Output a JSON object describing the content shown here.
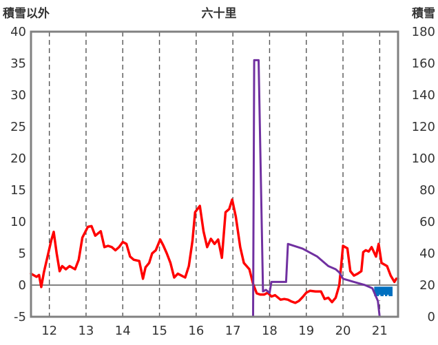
{
  "chart_data": {
    "type": "line",
    "title": "六十里",
    "left_axis_label": "積雪以外",
    "right_axis_label": "積雪",
    "y_left_range": [
      -5,
      40
    ],
    "y_left_ticks": [
      -5,
      0,
      5,
      10,
      15,
      20,
      25,
      30,
      35,
      40
    ],
    "y_right_range": [
      0,
      180
    ],
    "y_right_ticks": [
      0,
      20,
      40,
      60,
      80,
      100,
      120,
      140,
      160,
      180
    ],
    "x_range": [
      11.5,
      21.5
    ],
    "x_ticks": [
      12,
      13,
      14,
      15,
      16,
      17,
      18,
      19,
      20,
      21
    ],
    "grid": "vertical dashed at each day",
    "colors": {
      "temperature": "#ff0000",
      "snow_depth": "#7030a0",
      "precip_bar": "#0070c0",
      "frame": "#808080",
      "zero_line": "#808080"
    },
    "series": [
      {
        "role": "temperature",
        "axis": "left",
        "points": [
          [
            11.5,
            1.8
          ],
          [
            11.65,
            1.3
          ],
          [
            11.72,
            1.6
          ],
          [
            11.78,
            -0.3
          ],
          [
            11.85,
            2.0
          ],
          [
            11.95,
            4.5
          ],
          [
            12.05,
            7.0
          ],
          [
            12.12,
            8.4
          ],
          [
            12.2,
            5.0
          ],
          [
            12.28,
            2.2
          ],
          [
            12.35,
            3.0
          ],
          [
            12.45,
            2.5
          ],
          [
            12.55,
            3.0
          ],
          [
            12.7,
            2.5
          ],
          [
            12.8,
            4.0
          ],
          [
            12.9,
            7.5
          ],
          [
            13.05,
            9.2
          ],
          [
            13.15,
            9.3
          ],
          [
            13.25,
            7.8
          ],
          [
            13.4,
            8.5
          ],
          [
            13.5,
            6.0
          ],
          [
            13.6,
            6.2
          ],
          [
            13.7,
            6.0
          ],
          [
            13.8,
            5.5
          ],
          [
            13.9,
            6.0
          ],
          [
            14.0,
            6.8
          ],
          [
            14.1,
            6.5
          ],
          [
            14.2,
            4.5
          ],
          [
            14.3,
            4.0
          ],
          [
            14.45,
            3.8
          ],
          [
            14.55,
            1.0
          ],
          [
            14.62,
            2.8
          ],
          [
            14.72,
            3.5
          ],
          [
            14.8,
            5.0
          ],
          [
            14.9,
            5.5
          ],
          [
            15.02,
            7.2
          ],
          [
            15.1,
            6.3
          ],
          [
            15.2,
            5.0
          ],
          [
            15.3,
            3.5
          ],
          [
            15.4,
            1.2
          ],
          [
            15.5,
            1.8
          ],
          [
            15.6,
            1.5
          ],
          [
            15.7,
            1.2
          ],
          [
            15.8,
            3.0
          ],
          [
            15.9,
            7.0
          ],
          [
            15.97,
            11.5
          ],
          [
            16.1,
            12.5
          ],
          [
            16.2,
            8.5
          ],
          [
            16.3,
            6.0
          ],
          [
            16.4,
            7.3
          ],
          [
            16.5,
            6.5
          ],
          [
            16.6,
            7.2
          ],
          [
            16.7,
            4.3
          ],
          [
            16.8,
            11.5
          ],
          [
            16.9,
            12.0
          ],
          [
            16.98,
            13.5
          ],
          [
            17.08,
            10.8
          ],
          [
            17.2,
            6.0
          ],
          [
            17.3,
            3.5
          ],
          [
            17.45,
            2.5
          ],
          [
            17.55,
            0.2
          ],
          [
            17.65,
            -1.3
          ],
          [
            17.75,
            -1.5
          ],
          [
            17.85,
            -1.5
          ],
          [
            17.95,
            -1.2
          ],
          [
            18.05,
            -1.8
          ],
          [
            18.15,
            -1.6
          ],
          [
            18.3,
            -2.3
          ],
          [
            18.4,
            -2.2
          ],
          [
            18.5,
            -2.3
          ],
          [
            18.6,
            -2.6
          ],
          [
            18.7,
            -2.8
          ],
          [
            18.8,
            -2.5
          ],
          [
            18.9,
            -1.9
          ],
          [
            19.0,
            -1.2
          ],
          [
            19.1,
            -0.9
          ],
          [
            19.25,
            -1.0
          ],
          [
            19.4,
            -1.0
          ],
          [
            19.5,
            -2.2
          ],
          [
            19.6,
            -2.0
          ],
          [
            19.7,
            -2.7
          ],
          [
            19.8,
            -2.0
          ],
          [
            19.9,
            0.0
          ],
          [
            20.0,
            6.2
          ],
          [
            20.12,
            5.8
          ],
          [
            20.2,
            2.2
          ],
          [
            20.3,
            1.5
          ],
          [
            20.4,
            1.8
          ],
          [
            20.5,
            2.2
          ],
          [
            20.55,
            5.2
          ],
          [
            20.62,
            5.5
          ],
          [
            20.7,
            5.3
          ],
          [
            20.78,
            6.0
          ],
          [
            20.9,
            4.5
          ],
          [
            20.97,
            6.5
          ],
          [
            21.05,
            3.5
          ],
          [
            21.2,
            3.0
          ],
          [
            21.3,
            1.5
          ],
          [
            21.4,
            0.5
          ],
          [
            21.45,
            1.0
          ],
          [
            21.5,
            1.0
          ]
        ]
      },
      {
        "role": "snow_depth",
        "axis": "right",
        "points": [
          [
            11.5,
            0
          ],
          [
            17.55,
            0
          ],
          [
            17.58,
            162
          ],
          [
            17.7,
            162
          ],
          [
            17.82,
            16
          ],
          [
            17.9,
            17
          ],
          [
            18.0,
            15
          ],
          [
            18.05,
            22
          ],
          [
            18.45,
            22
          ],
          [
            18.5,
            46
          ],
          [
            18.9,
            43
          ],
          [
            19.3,
            38
          ],
          [
            19.6,
            32
          ],
          [
            19.8,
            30
          ],
          [
            19.9,
            28
          ],
          [
            20.0,
            24
          ],
          [
            20.3,
            22
          ],
          [
            20.6,
            20
          ],
          [
            20.8,
            18
          ],
          [
            20.95,
            10
          ],
          [
            21.0,
            0
          ],
          [
            21.5,
            0
          ]
        ]
      }
    ],
    "bars": [
      {
        "role": "precipitation",
        "x": 21.1,
        "width": 0.5,
        "top_right_axis": 19,
        "bottom_right_axis": 13
      }
    ]
  }
}
